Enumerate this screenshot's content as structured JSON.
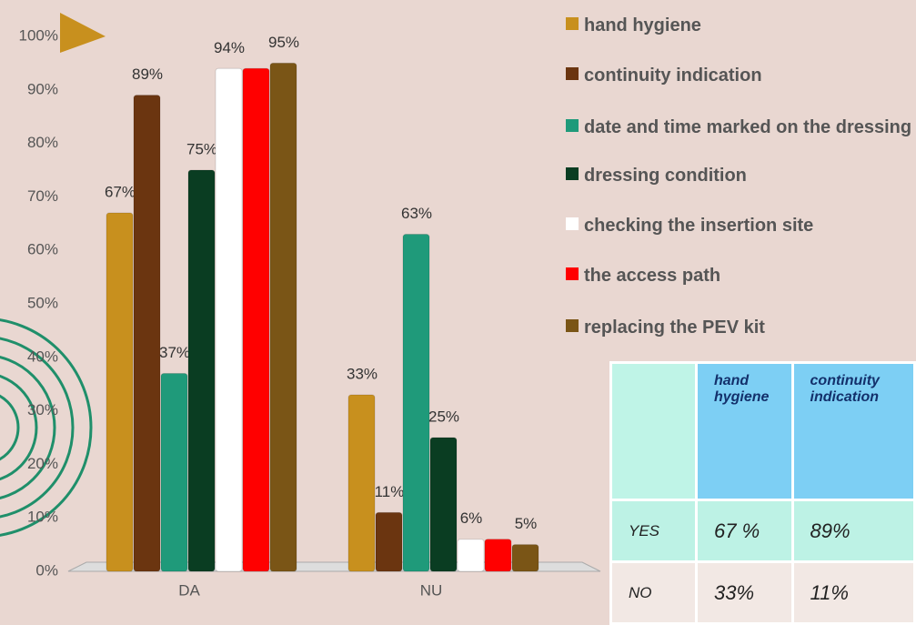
{
  "chart_data": {
    "type": "bar",
    "categories": [
      "DA",
      "NU"
    ],
    "series": [
      {
        "name": "hand hygiene",
        "color": "#c8901e",
        "values": [
          67,
          33
        ],
        "value_labels": [
          "67%",
          "33%"
        ]
      },
      {
        "name": "continuity indication",
        "color": "#6b3510",
        "values": [
          89,
          11
        ],
        "value_labels": [
          "89%",
          "11%"
        ]
      },
      {
        "name": "date and time marked on the dressing",
        "color": "#1f9a7a",
        "values": [
          37,
          63
        ],
        "value_labels": [
          "37%",
          "63%"
        ]
      },
      {
        "name": "dressing condition",
        "color": "#0a3d22",
        "values": [
          75,
          25
        ],
        "value_labels": [
          "75%",
          "25%"
        ]
      },
      {
        "name": "checking the insertion site",
        "color": "#ffffff",
        "values": [
          94,
          6
        ],
        "value_labels": [
          "94%",
          "6%"
        ]
      },
      {
        "name": "the access path",
        "color": "#ff0000",
        "values": [
          94,
          6
        ],
        "value_labels": [
          null,
          null
        ]
      },
      {
        "name": "replacing the PEV kit",
        "color": "#7a5516",
        "values": [
          95,
          5
        ],
        "value_labels": [
          "95%",
          "5%"
        ]
      }
    ],
    "ylim": [
      0,
      100
    ],
    "yticks": [
      {
        "value": 0,
        "label": "0%"
      },
      {
        "value": 10,
        "label": "10%"
      },
      {
        "value": 20,
        "label": "20%"
      },
      {
        "value": 30,
        "label": "30%"
      },
      {
        "value": 40,
        "label": "40%"
      },
      {
        "value": 50,
        "label": "50%"
      },
      {
        "value": 60,
        "label": "60%"
      },
      {
        "value": 70,
        "label": "70%"
      },
      {
        "value": 80,
        "label": "80%"
      },
      {
        "value": 90,
        "label": "90%"
      },
      {
        "value": 100,
        "label": "100%"
      }
    ]
  },
  "table": {
    "header": [
      "hand hygiene",
      "continuity indication"
    ],
    "rows": [
      [
        "YES",
        "67 %",
        "89%"
      ],
      [
        "NO",
        "33%",
        "11%"
      ]
    ]
  }
}
